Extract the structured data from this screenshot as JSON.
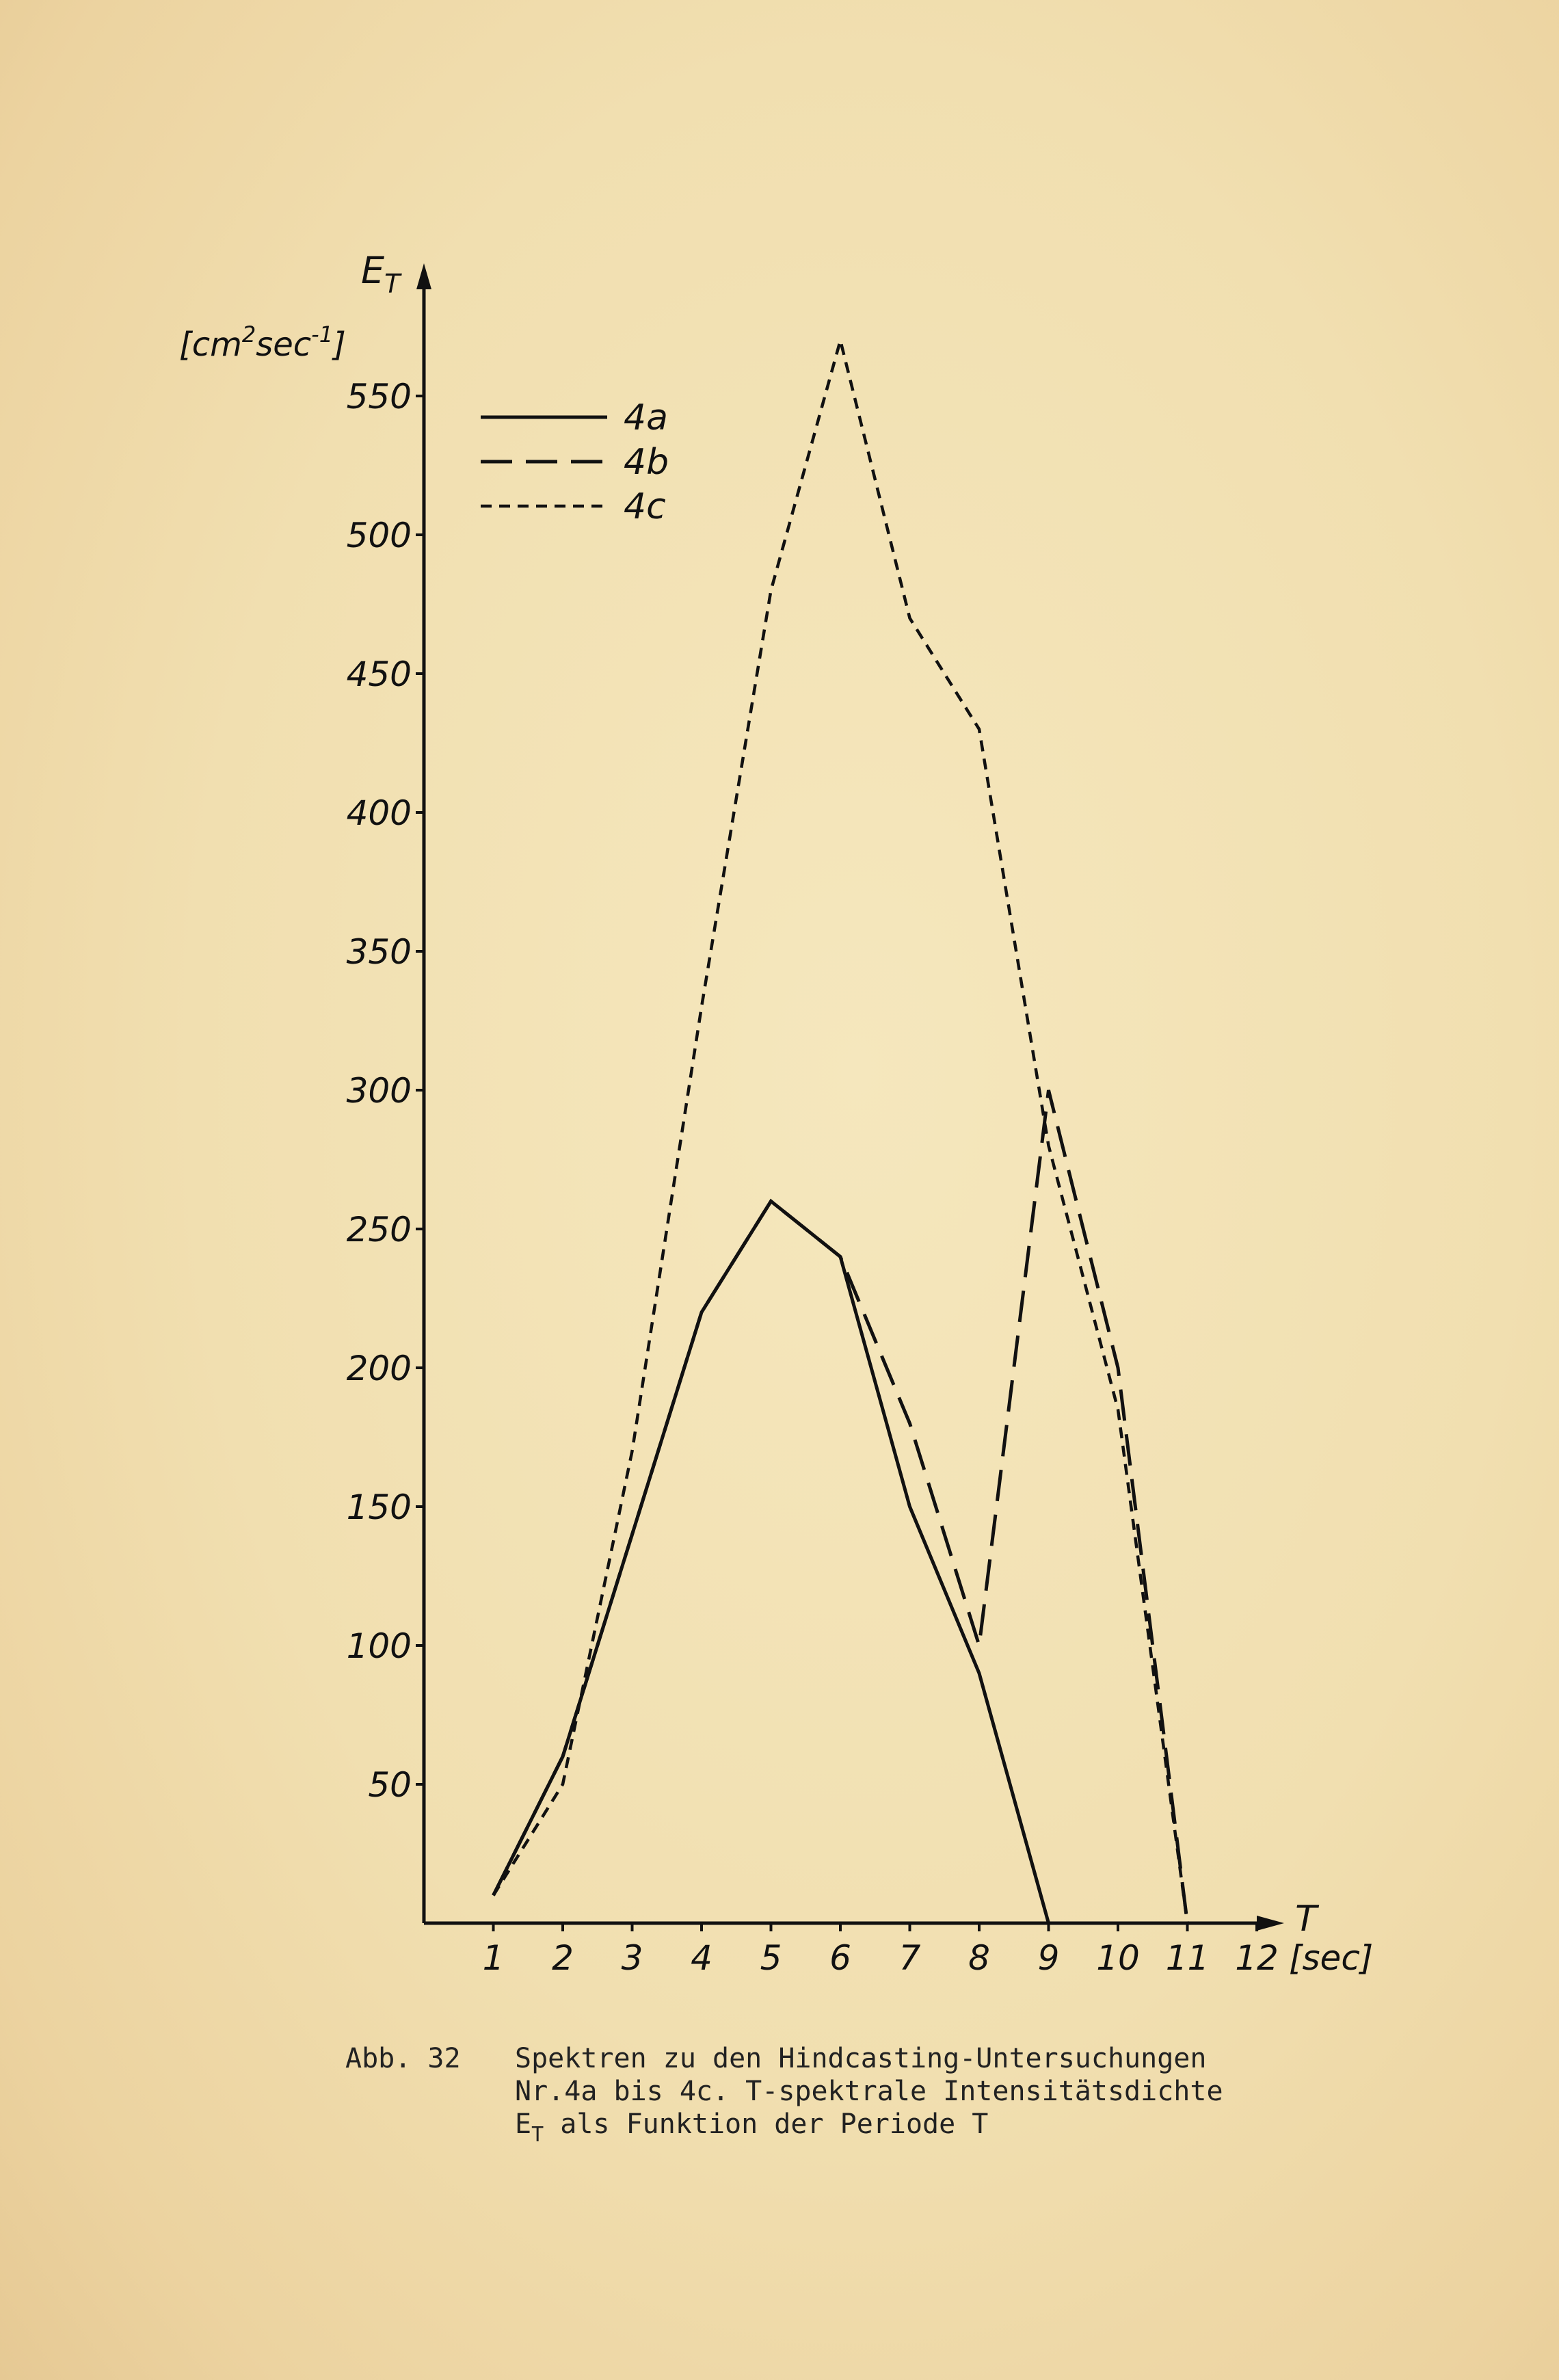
{
  "chart_data": {
    "type": "line",
    "ylabel_symbol": "E",
    "ylabel_subscript": "T",
    "ylabel_unit_prefix": "[cm",
    "ylabel_unit_sup1": "2",
    "ylabel_unit_mid": "sec",
    "ylabel_unit_sup2": "-1",
    "ylabel_unit_suffix": "]",
    "xlabel_symbol": "T",
    "xlabel_unit": "[sec]",
    "x_ticks": [
      1,
      2,
      3,
      4,
      5,
      6,
      7,
      8,
      9,
      10,
      11,
      12
    ],
    "y_ticks": [
      50,
      100,
      150,
      200,
      250,
      300,
      350,
      400,
      450,
      500,
      550
    ],
    "xlim": [
      0,
      12.5
    ],
    "ylim": [
      0,
      570
    ],
    "grid": false,
    "legend_position": "top-left",
    "series": [
      {
        "name": "4a",
        "style": "solid",
        "x": [
          1,
          2,
          3,
          4,
          5,
          6,
          7,
          8,
          9,
          10,
          11
        ],
        "y": [
          10,
          60,
          140,
          220,
          260,
          240,
          150,
          90,
          0,
          0,
          0
        ]
      },
      {
        "name": "4b",
        "style": "dashed",
        "x": [
          1,
          2,
          3,
          4,
          5,
          6,
          7,
          8,
          9,
          10,
          11
        ],
        "y": [
          10,
          60,
          140,
          220,
          260,
          240,
          180,
          100,
          300,
          200,
          0
        ]
      },
      {
        "name": "4c",
        "style": "dotted",
        "x": [
          1,
          2,
          3,
          4,
          5,
          6,
          7,
          8,
          9,
          10,
          11
        ],
        "y": [
          10,
          50,
          170,
          330,
          480,
          570,
          470,
          430,
          280,
          185,
          0
        ]
      }
    ]
  },
  "caption": {
    "figure_label": "Abb. 32",
    "line1": "Spektren  zu den Hindcasting-Untersuchungen",
    "line2": "Nr.4a bis 4c. T-spektrale Intensitätsdichte",
    "line3_symbol": "E",
    "line3_subscript": "T",
    "line3_rest": " als Funktion der Periode T"
  }
}
